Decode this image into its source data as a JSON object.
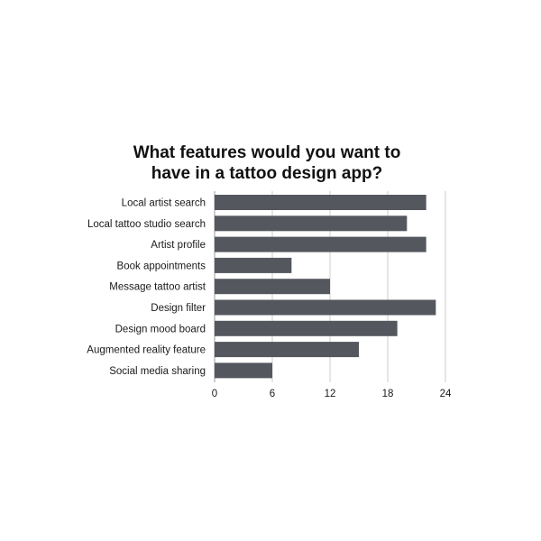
{
  "chart_data": {
    "type": "bar",
    "orientation": "horizontal",
    "title": "What features would you want to have in a tattoo design app?",
    "title_lines": [
      "What features would you want to",
      "have in a tattoo design app?"
    ],
    "categories": [
      "Local artist search",
      "Local tattoo studio search",
      "Artist profile",
      "Book appointments",
      "Message tattoo artist",
      "Design filter",
      "Design mood board",
      "Augmented reality feature",
      "Social media sharing"
    ],
    "values": [
      22,
      20,
      22,
      8,
      12,
      23,
      19,
      15,
      6
    ],
    "xlim": [
      0,
      24
    ],
    "xticks": [
      "0",
      "6",
      "12",
      "18",
      "24"
    ],
    "xlabel": "",
    "ylabel": "",
    "grid": "vertical",
    "bar_color": "#54575e",
    "grid_color": "#cccccc"
  }
}
